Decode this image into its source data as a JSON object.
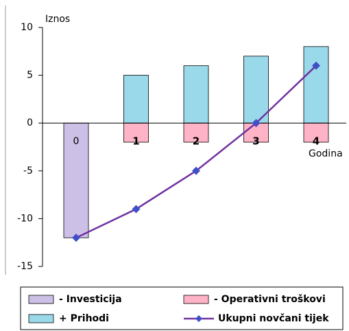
{
  "chart_data": {
    "type": "bar",
    "y_label": "Iznos",
    "x_label": "Godina",
    "categories": [
      "0",
      "1",
      "2",
      "3",
      "4"
    ],
    "series": [
      {
        "name": "- Investicija",
        "color": "#ccc0e6",
        "values": [
          -12,
          null,
          null,
          null,
          null
        ]
      },
      {
        "name": "- Operativni troškovi",
        "color": "#ffb3c6",
        "values": [
          null,
          -2,
          -2,
          -2,
          -2
        ]
      },
      {
        "name": "+ Prihodi",
        "color": "#9ad9ea",
        "values": [
          null,
          5,
          6,
          7,
          8
        ]
      },
      {
        "name": "Ukupni novčani tijek",
        "color": "#7030a0",
        "marker_color": "#3f4fc8",
        "type": "line",
        "values": [
          -12,
          -9,
          -5,
          0,
          6
        ]
      }
    ],
    "ylim": [
      -15,
      10
    ],
    "yticks": [
      -15,
      -10,
      -5,
      0,
      5,
      10
    ]
  }
}
